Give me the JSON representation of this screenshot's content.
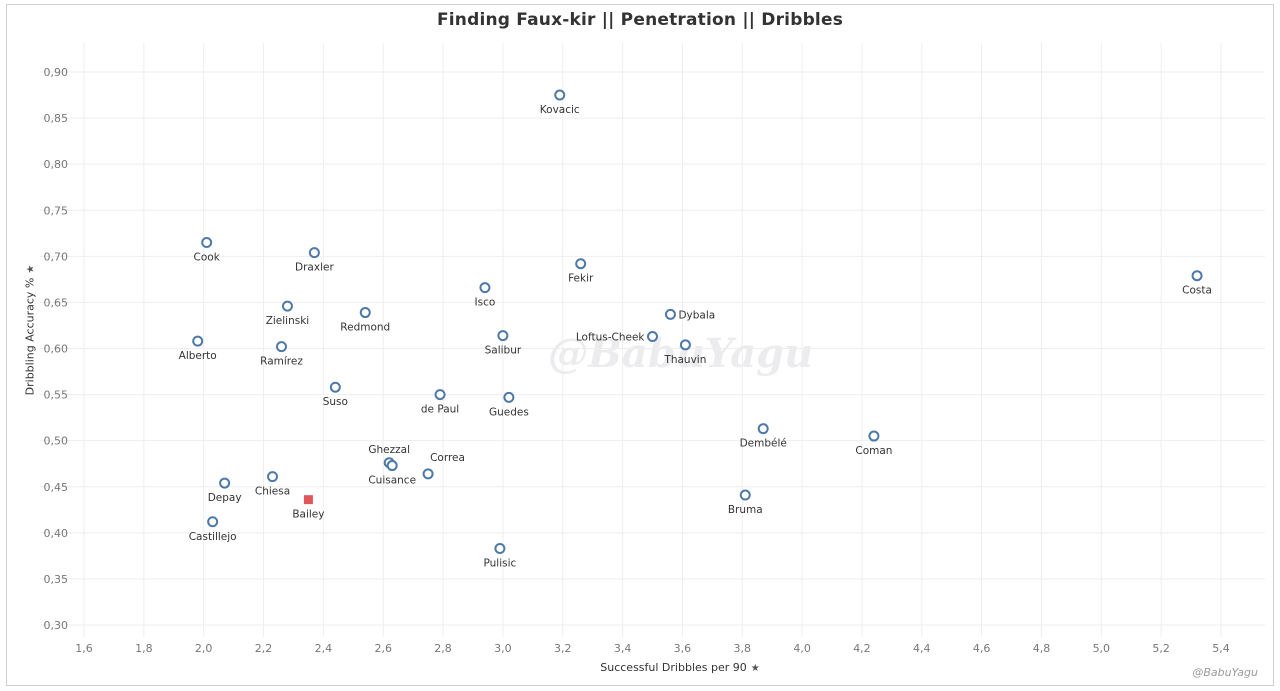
{
  "title": "Finding Faux-kir  ||  Penetration  ||  Dribbles",
  "watermark": "@BabuYagu",
  "credit": "@BabuYagu",
  "colors": {
    "point_stroke": "#4e79a7",
    "highlight": "#e15759",
    "grid": "#eeeeee",
    "axis_text": "#777777"
  },
  "chart_data": {
    "type": "scatter",
    "xlabel": "Successful Dribbles per 90",
    "ylabel": "Dribbling Accuracy %",
    "xlim": [
      1.6,
      5.4
    ],
    "ylim": [
      0.3,
      0.9
    ],
    "xticks": [
      "1,6",
      "1,8",
      "2,0",
      "2,2",
      "2,4",
      "2,6",
      "2,8",
      "3,0",
      "3,2",
      "3,4",
      "3,6",
      "3,8",
      "4,0",
      "4,2",
      "4,4",
      "4,6",
      "4,8",
      "5,0",
      "5,2",
      "5,4"
    ],
    "yticks": [
      "0,30",
      "0,35",
      "0,40",
      "0,45",
      "0,50",
      "0,55",
      "0,60",
      "0,65",
      "0,70",
      "0,75",
      "0,80",
      "0,85",
      "0,90"
    ],
    "grid": true,
    "points": [
      {
        "name": "Kovacic",
        "x": 3.19,
        "y": 0.875,
        "label_pos": "below"
      },
      {
        "name": "Cook",
        "x": 2.01,
        "y": 0.715,
        "label_pos": "below"
      },
      {
        "name": "Draxler",
        "x": 2.37,
        "y": 0.704,
        "label_pos": "below"
      },
      {
        "name": "Fekir",
        "x": 3.26,
        "y": 0.692,
        "label_pos": "below"
      },
      {
        "name": "Costa",
        "x": 5.32,
        "y": 0.679,
        "label_pos": "below"
      },
      {
        "name": "Isco",
        "x": 2.94,
        "y": 0.666,
        "label_pos": "below"
      },
      {
        "name": "Zielinski",
        "x": 2.28,
        "y": 0.646,
        "label_pos": "below"
      },
      {
        "name": "Redmond",
        "x": 2.54,
        "y": 0.639,
        "label_pos": "below"
      },
      {
        "name": "Dybala",
        "x": 3.56,
        "y": 0.637,
        "label_pos": "right"
      },
      {
        "name": "Salibur",
        "x": 3.0,
        "y": 0.614,
        "label_pos": "below"
      },
      {
        "name": "Loftus-Cheek",
        "x": 3.5,
        "y": 0.613,
        "label_pos": "left"
      },
      {
        "name": "Alberto",
        "x": 1.98,
        "y": 0.608,
        "label_pos": "below"
      },
      {
        "name": "Ramírez",
        "x": 2.26,
        "y": 0.602,
        "label_pos": "below"
      },
      {
        "name": "Thauvin",
        "x": 3.61,
        "y": 0.604,
        "label_pos": "below"
      },
      {
        "name": "Suso",
        "x": 2.44,
        "y": 0.558,
        "label_pos": "below"
      },
      {
        "name": "de Paul",
        "x": 2.79,
        "y": 0.55,
        "label_pos": "below"
      },
      {
        "name": "Guedes",
        "x": 3.02,
        "y": 0.547,
        "label_pos": "below"
      },
      {
        "name": "Dembélé",
        "x": 3.87,
        "y": 0.513,
        "label_pos": "below"
      },
      {
        "name": "Coman",
        "x": 4.24,
        "y": 0.505,
        "label_pos": "below"
      },
      {
        "name": "Ghezzal",
        "x": 2.62,
        "y": 0.476,
        "label_pos": "above"
      },
      {
        "name": "Cuisance",
        "x": 2.63,
        "y": 0.473,
        "label_pos": "below"
      },
      {
        "name": "Correa",
        "x": 2.75,
        "y": 0.464,
        "label_pos": "above-right"
      },
      {
        "name": "Chiesa",
        "x": 2.23,
        "y": 0.461,
        "label_pos": "below"
      },
      {
        "name": "Depay",
        "x": 2.07,
        "y": 0.454,
        "label_pos": "below"
      },
      {
        "name": "Bruma",
        "x": 3.81,
        "y": 0.441,
        "label_pos": "below"
      },
      {
        "name": "Bailey",
        "x": 2.35,
        "y": 0.436,
        "label_pos": "below",
        "highlight": true
      },
      {
        "name": "Castillejo",
        "x": 2.03,
        "y": 0.412,
        "label_pos": "below"
      },
      {
        "name": "Pulisic",
        "x": 2.99,
        "y": 0.383,
        "label_pos": "below"
      }
    ]
  }
}
